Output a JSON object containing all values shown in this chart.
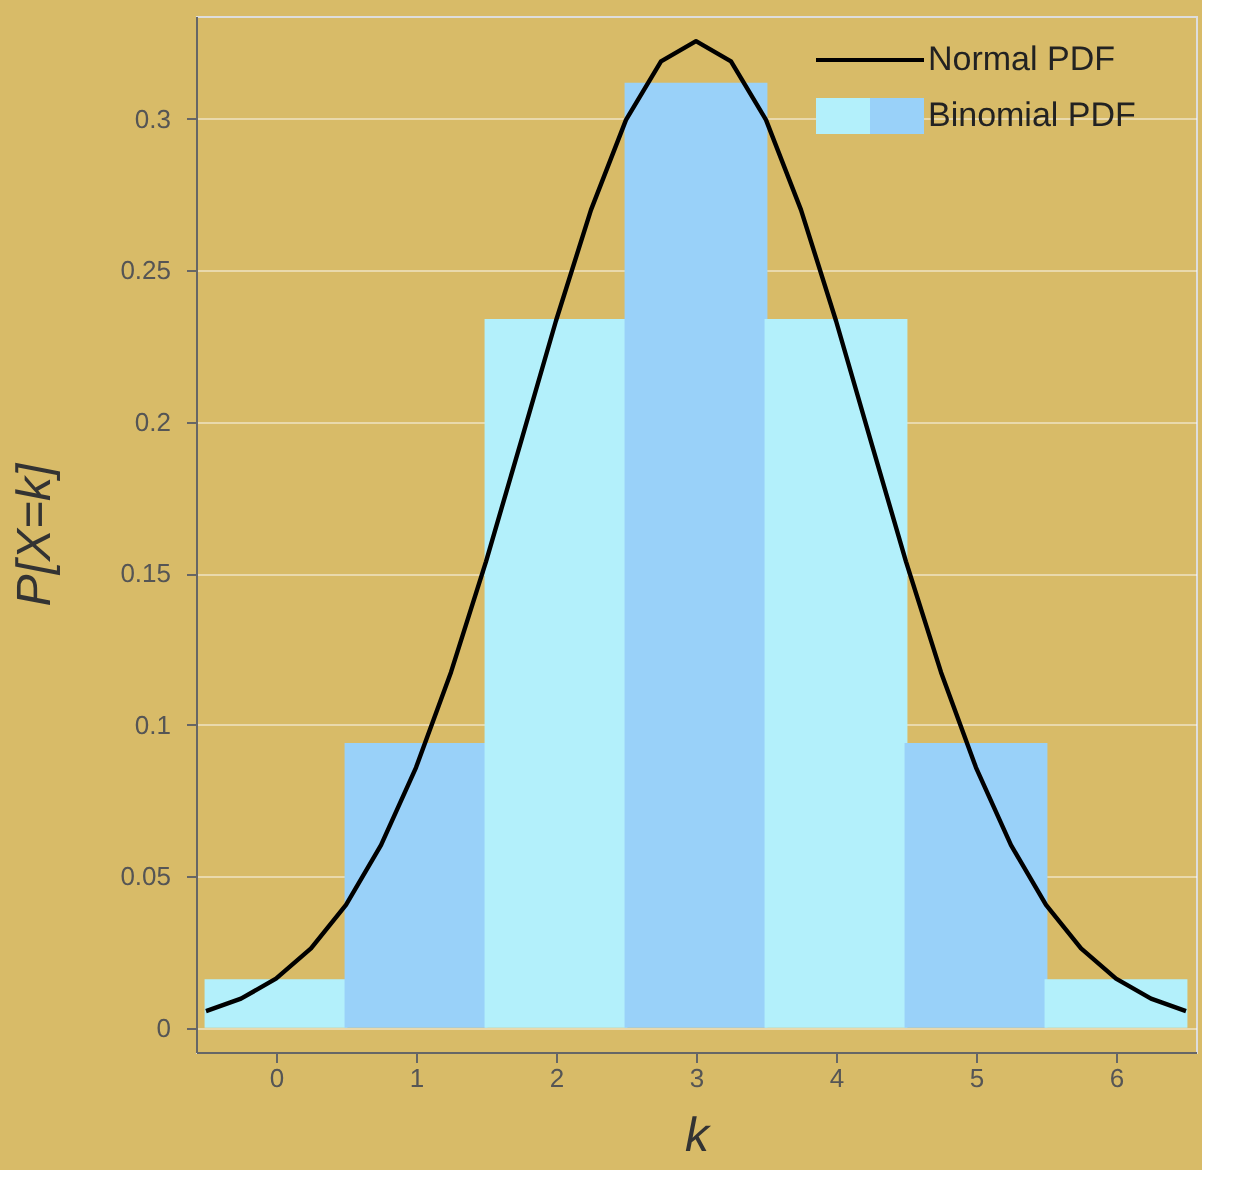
{
  "chart_data": {
    "type": "bar",
    "xlabel": "k",
    "ylabel": "P[X=k]",
    "x": [
      0,
      1,
      2,
      3,
      4,
      5,
      6
    ],
    "series": [
      {
        "name": "Binomial PDF",
        "colors": [
          "#b3f0fb",
          "#99d1f9",
          "#b3f0fb",
          "#99d1f9",
          "#b3f0fb",
          "#99d1f9",
          "#b3f0fb"
        ],
        "values": [
          0.016,
          0.094,
          0.234,
          0.312,
          0.234,
          0.094,
          0.016
        ]
      },
      {
        "name": "Normal PDF",
        "type": "line",
        "color": "#000000",
        "x": [
          -0.5,
          -0.25,
          0,
          0.25,
          0.5,
          0.75,
          1,
          1.25,
          1.5,
          1.75,
          2,
          2.25,
          2.5,
          2.75,
          3,
          3.25,
          3.5,
          3.75,
          4,
          4.25,
          4.5,
          4.75,
          5,
          5.25,
          5.5,
          5.75,
          6,
          6.25,
          6.5
        ],
        "values": [
          0.0055,
          0.0096,
          0.0162,
          0.0262,
          0.0406,
          0.0603,
          0.0859,
          0.1174,
          0.1539,
          0.1935,
          0.2334,
          0.27,
          0.2997,
          0.319,
          0.3257,
          0.319,
          0.2997,
          0.27,
          0.2334,
          0.1935,
          0.1539,
          0.1174,
          0.0859,
          0.0603,
          0.0406,
          0.0262,
          0.0162,
          0.0096,
          0.0055
        ]
      }
    ],
    "xlim": [
      -0.5,
      6.5
    ],
    "xticks": [
      0,
      1,
      2,
      3,
      4,
      5,
      6
    ],
    "ylim": [
      -0.008,
      0.334
    ],
    "yticks": [
      0,
      0.05,
      0.1,
      0.15,
      0.2,
      0.25,
      0.3
    ],
    "grid": "y",
    "legend": "top right",
    "line_style": "solid",
    "marker": "none"
  }
}
